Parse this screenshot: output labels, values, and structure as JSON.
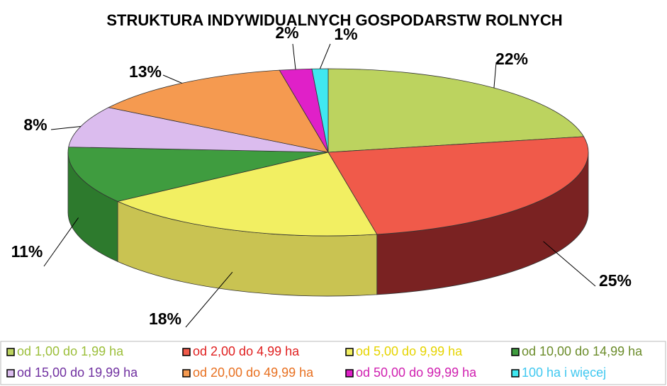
{
  "chart_data": {
    "type": "pie3d",
    "title": "STRUKTURA INDYWIDUALNYCH GOSPODARSTW ROLNYCH",
    "categories": [
      "od 1,00 do 1,99 ha",
      "od 2,00 do 4,99 ha",
      "od 5,00 do 9,99 ha",
      "od 10,00 do 14,99 ha",
      "od 15,00 do 19,99 ha",
      "od 20,00 do 49,99 ha",
      "od 50,00 do 99,99 ha",
      "100 ha i więcej"
    ],
    "values": [
      22,
      25,
      18,
      11,
      8,
      13,
      2,
      1
    ],
    "value_labels": [
      "22%",
      "25%",
      "18%",
      "11%",
      "8%",
      "13%",
      "2%",
      "1%"
    ],
    "colors": [
      "#bcd35f",
      "#f05a4a",
      "#f2ef62",
      "#3f9c3f",
      "#dbbcee",
      "#f59a50",
      "#e020c8",
      "#40e8f0"
    ],
    "side_colors": [
      "#98ae45",
      "#7a2222",
      "#c9c352",
      "#2d7a2d",
      "#b497c8",
      "#c97a3c",
      "#a0168f",
      "#30b0b8"
    ],
    "legend_text_colors": [
      "#9cbf3a",
      "#e02020",
      "#e6d400",
      "#6b8c2a",
      "#7030a0",
      "#e87020",
      "#d020b0",
      "#40c8f0"
    ]
  }
}
